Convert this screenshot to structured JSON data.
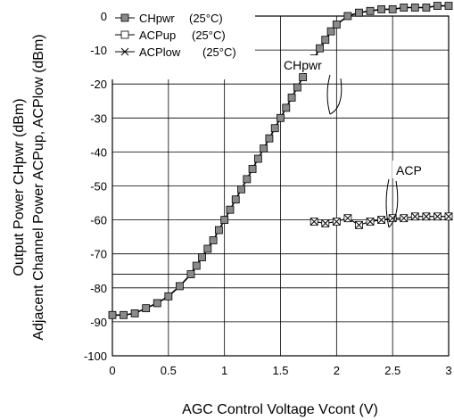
{
  "chart_data": {
    "type": "line",
    "title": "",
    "xlabel": "AGC Control Voltage  Vcont (V)",
    "ylabel_lines": [
      "Output Power  CHpwr (dBm)",
      "Adjacent Channel Power  ACPup, ACPlow (dBm)"
    ],
    "xlim": [
      0,
      3
    ],
    "ylim": [
      -100,
      0
    ],
    "x_ticks": [
      "0",
      "0.5",
      "1",
      "1.5",
      "2",
      "2.5",
      "3"
    ],
    "x_tick_values": [
      0,
      0.5,
      1,
      1.5,
      2,
      2.5,
      3
    ],
    "y_ticks": [
      "0",
      "-10",
      "-20",
      "-30",
      "-40",
      "-50",
      "-60",
      "-70",
      "-80",
      "-90",
      "-100"
    ],
    "y_tick_values": [
      0,
      -10,
      -20,
      -30,
      -40,
      -50,
      -60,
      -70,
      -80,
      -90,
      -100
    ],
    "gridlines_y": [
      -10,
      -20,
      -30,
      -40,
      -50,
      -60,
      -70,
      -76,
      -80,
      -90
    ],
    "grid": true,
    "legend_position": "top-left",
    "legend": [
      {
        "label": "CHpwr",
        "temp": "(25°C)",
        "marker": "filled-square"
      },
      {
        "label": "ACPup",
        "temp": "(25°C)",
        "marker": "open-square"
      },
      {
        "label": "ACPlow",
        "temp": "(25°C)",
        "marker": "x"
      }
    ],
    "series": [
      {
        "name": "CHpwr (25°C)",
        "marker": "filled-square",
        "x": [
          0,
          0.1,
          0.2,
          0.3,
          0.4,
          0.5,
          0.6,
          0.7,
          0.75,
          0.8,
          0.85,
          0.9,
          0.95,
          1.0,
          1.05,
          1.1,
          1.15,
          1.2,
          1.25,
          1.3,
          1.35,
          1.4,
          1.45,
          1.5,
          1.55,
          1.6,
          1.65,
          1.7,
          1.75,
          1.8,
          1.85,
          1.9,
          1.95,
          2.0,
          2.1,
          2.2,
          2.3,
          2.4,
          2.5,
          2.6,
          2.7,
          2.8,
          2.9,
          3.0
        ],
        "y": [
          -88,
          -88,
          -87.5,
          -86,
          -84.5,
          -82.5,
          -79.5,
          -76,
          -73.5,
          -71,
          -68.5,
          -66,
          -63,
          -60,
          -57,
          -54,
          -51,
          -48,
          -45,
          -42,
          -39,
          -36,
          -33,
          -30,
          -27,
          -24,
          -21,
          -18,
          -15,
          -12.5,
          -9.5,
          -7,
          -4.5,
          -2.5,
          0,
          1,
          1.5,
          2,
          2,
          2.5,
          2.5,
          2.5,
          3,
          3
        ]
      },
      {
        "name": "ACPup (25°C)",
        "marker": "open-square",
        "x": [
          1.8,
          1.9,
          2.0,
          2.1,
          2.2,
          2.3,
          2.4,
          2.5,
          2.6,
          2.7,
          2.8,
          2.9,
          3.0
        ],
        "y": [
          -60.5,
          -61,
          -60.5,
          -59.5,
          -61.5,
          -60.5,
          -60,
          -59.5,
          -59.5,
          -59,
          -59,
          -59,
          -59
        ]
      },
      {
        "name": "ACPlow (25°C)",
        "marker": "x",
        "x": [
          1.8,
          1.9,
          2.0,
          2.1,
          2.2,
          2.3,
          2.4,
          2.5,
          2.6,
          2.7,
          2.8,
          2.9,
          3.0
        ],
        "y": [
          -60.5,
          -61,
          -60.5,
          -59.5,
          -61.5,
          -60.5,
          -60,
          -59.5,
          -59.5,
          -59,
          -59,
          -59,
          -59
        ]
      }
    ],
    "annotations": [
      {
        "text": "CHpwr"
      },
      {
        "text": "ACP"
      }
    ]
  }
}
